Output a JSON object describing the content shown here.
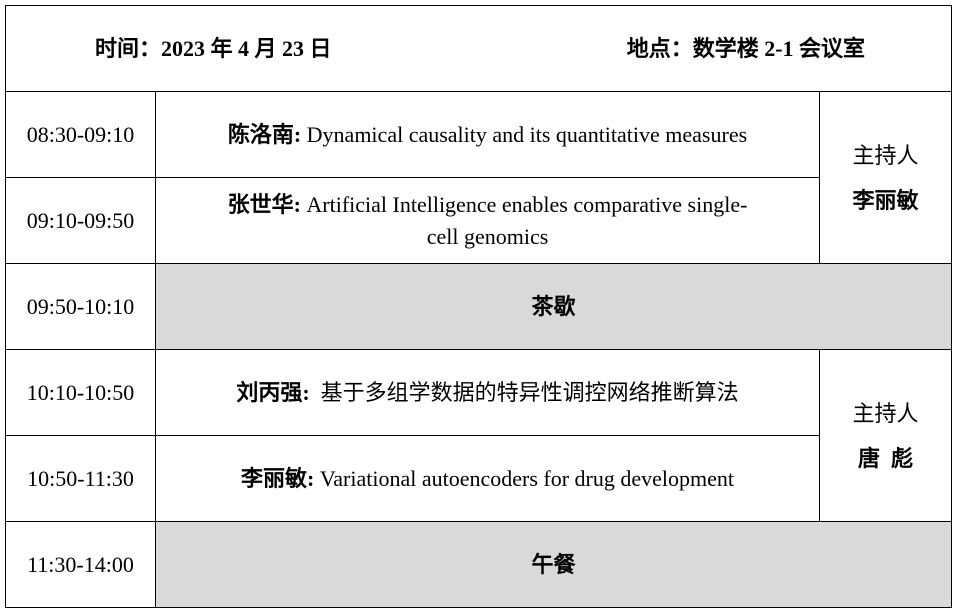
{
  "header": {
    "time": "时间：2023 年 4 月 23 日",
    "location": "地点：数学楼 2-1 会议室"
  },
  "rows": [
    {
      "time": "08:30-09:10",
      "speaker": "陈洛南:",
      "title": " Dynamical causality and its quantitative measures"
    },
    {
      "time": "09:10-09:50",
      "speaker": "张世华:",
      "title": " Artificial Intelligence enables comparative single-cell genomics"
    },
    {
      "time": "09:50-10:10",
      "break": "茶歇"
    },
    {
      "time": "10:10-10:50",
      "speaker": "刘丙强:",
      "title": "  基于多组学数据的特异性调控网络推断算法"
    },
    {
      "time": "10:50-11:30",
      "speaker": "李丽敏:",
      "title": " Variational autoencoders for drug development"
    },
    {
      "time": "11:30-14:00",
      "break": "午餐"
    }
  ],
  "hosts": [
    {
      "label": "主持人",
      "name": "李丽敏"
    },
    {
      "label": "主持人",
      "name": "唐  彪"
    }
  ]
}
